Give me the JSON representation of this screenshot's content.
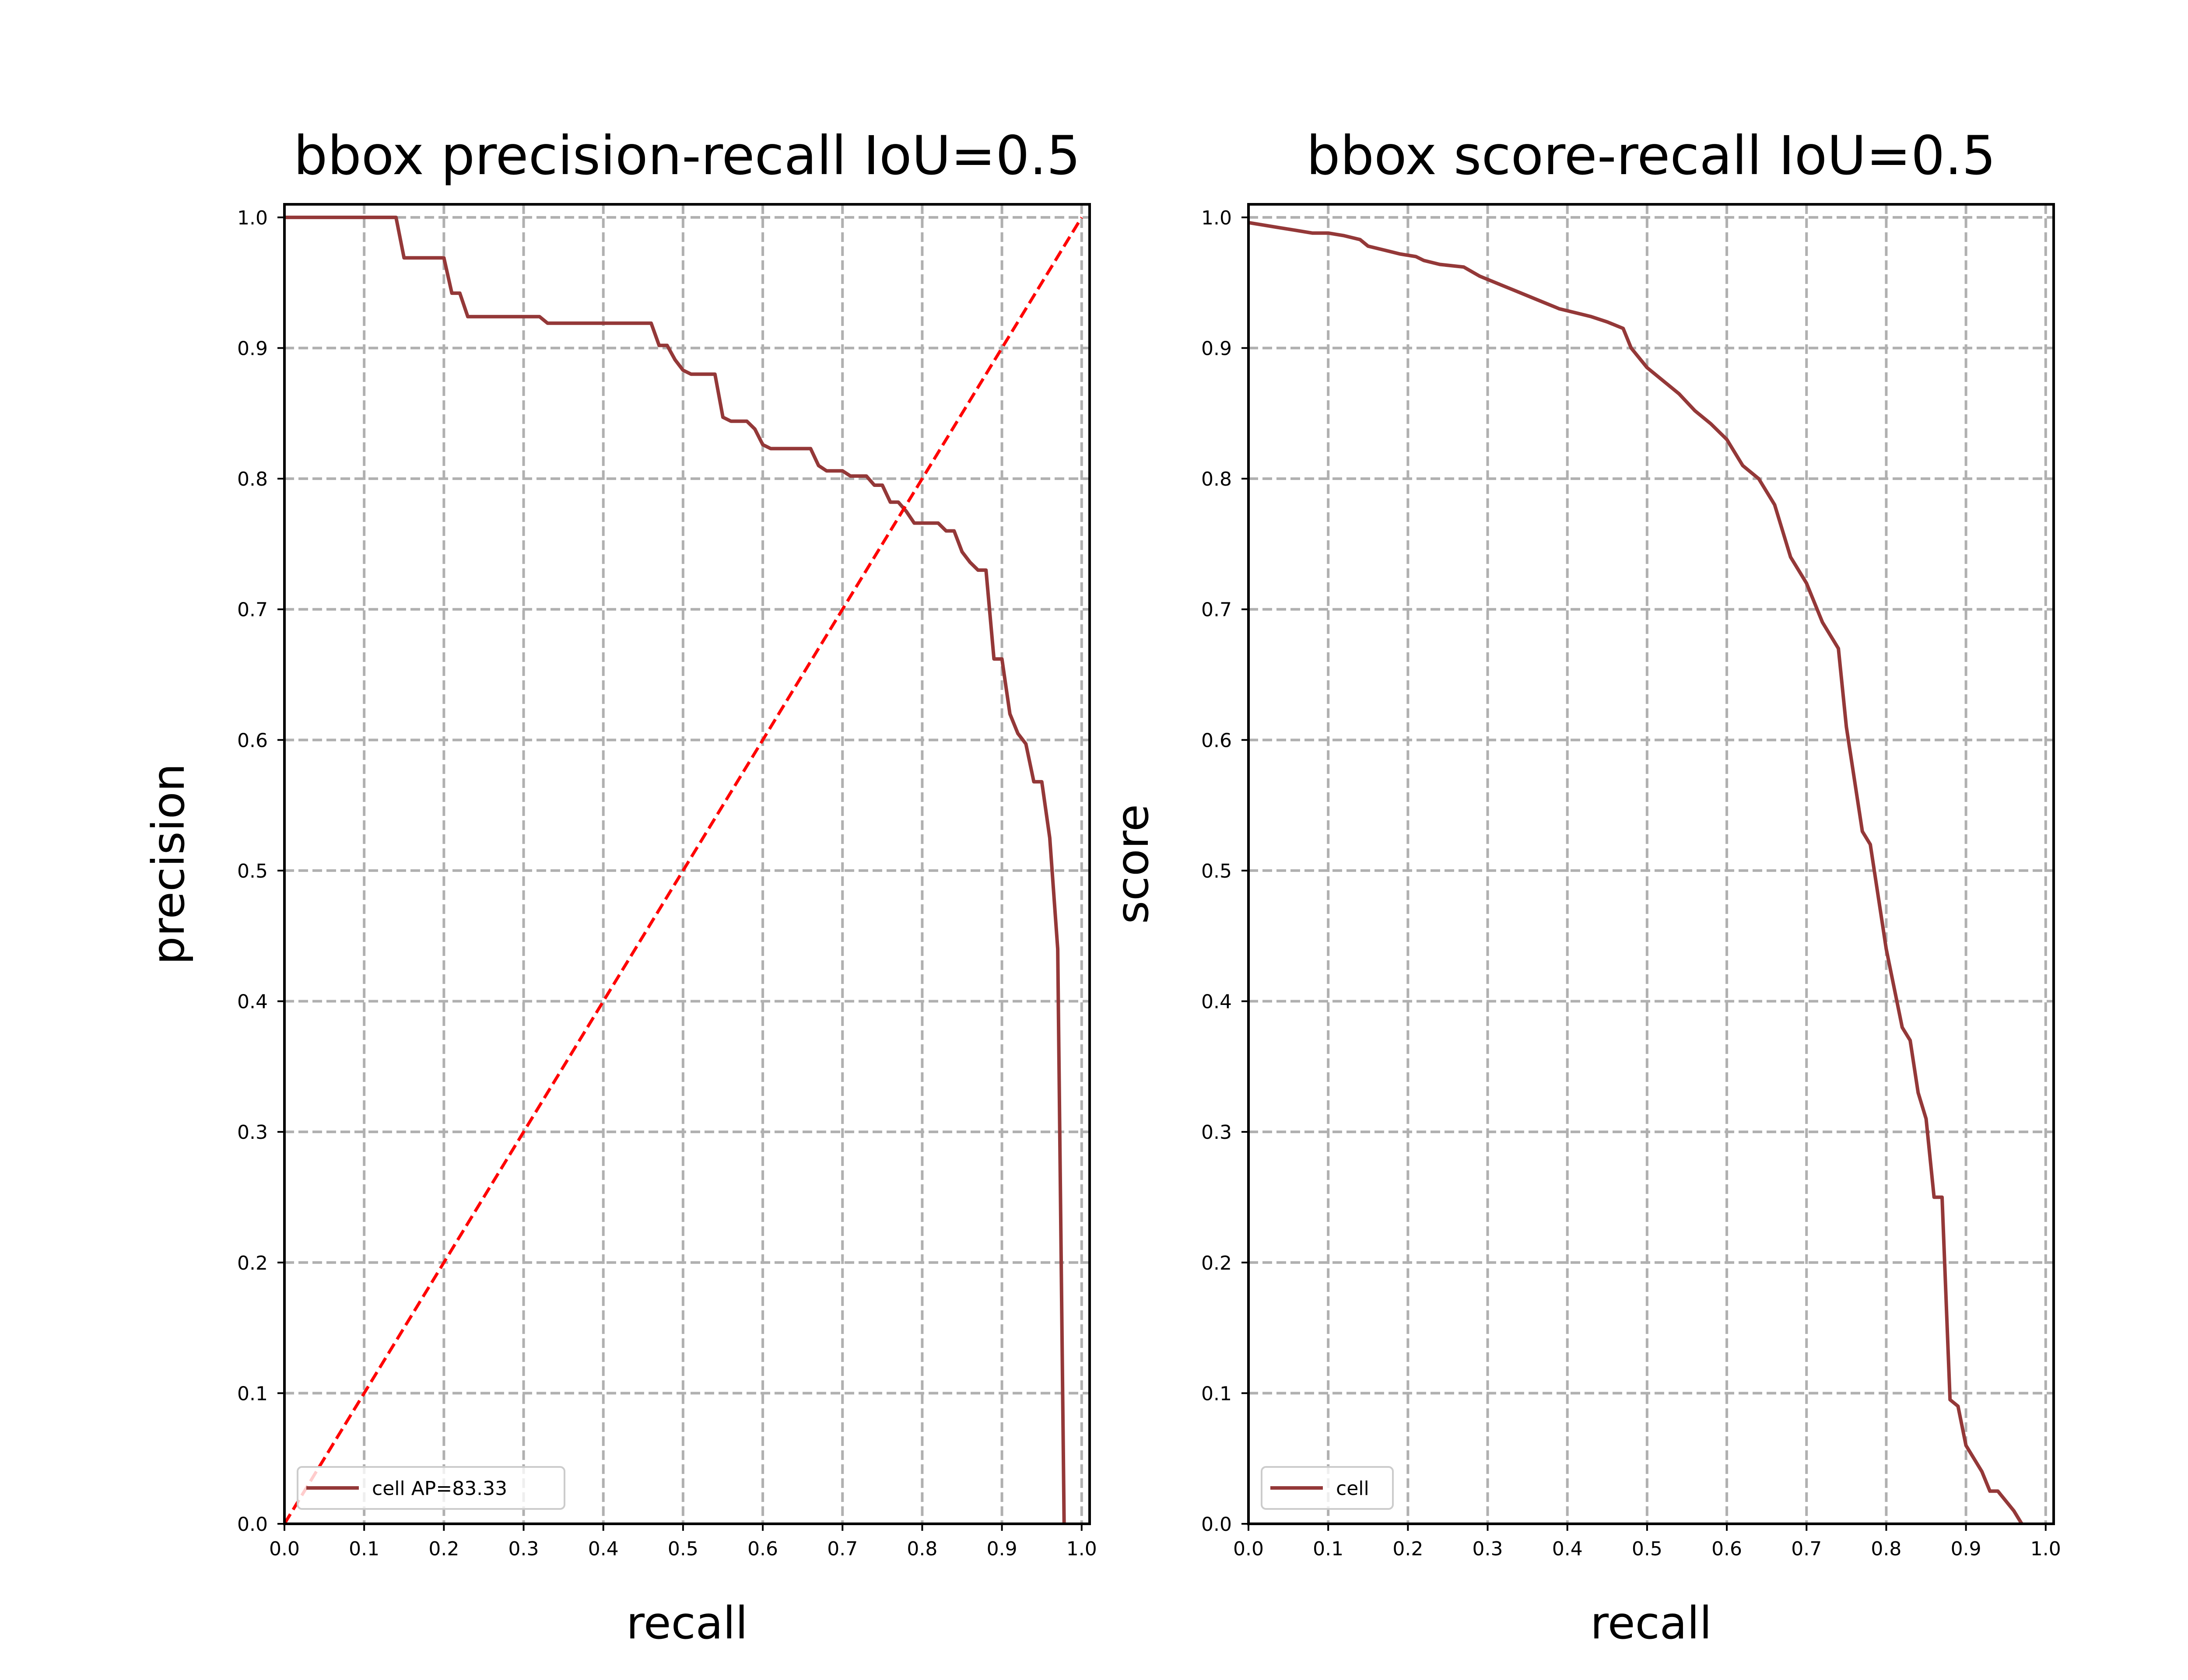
{
  "chart_data": [
    {
      "type": "line",
      "title": "bbox precision-recall IoU=0.5",
      "xlabel": "recall",
      "ylabel": "precision",
      "xlim": [
        0,
        1.0
      ],
      "ylim": [
        0,
        1.0
      ],
      "grid": true,
      "legend_position": "lower-left",
      "x_ticks": [
        "0.0",
        "0.1",
        "0.2",
        "0.3",
        "0.4",
        "0.5",
        "0.6",
        "0.7",
        "0.8",
        "0.9",
        "1.0"
      ],
      "y_ticks": [
        "0.0",
        "0.1",
        "0.2",
        "0.3",
        "0.4",
        "0.5",
        "0.6",
        "0.7",
        "0.8",
        "0.9",
        "1.0"
      ],
      "series": [
        {
          "name": "cell AP=83.33",
          "color": "#943838",
          "points": [
            [
              0,
              1.0
            ],
            [
              0.14,
              1.0
            ],
            [
              0.15,
              0.969
            ],
            [
              0.2,
              0.969
            ],
            [
              0.21,
              0.942
            ],
            [
              0.22,
              0.942
            ],
            [
              0.23,
              0.924
            ],
            [
              0.32,
              0.924
            ],
            [
              0.33,
              0.919
            ],
            [
              0.46,
              0.919
            ],
            [
              0.47,
              0.902
            ],
            [
              0.48,
              0.902
            ],
            [
              0.49,
              0.891
            ],
            [
              0.5,
              0.883
            ],
            [
              0.51,
              0.88
            ],
            [
              0.54,
              0.88
            ],
            [
              0.55,
              0.847
            ],
            [
              0.56,
              0.844
            ],
            [
              0.58,
              0.844
            ],
            [
              0.59,
              0.838
            ],
            [
              0.6,
              0.826
            ],
            [
              0.61,
              0.823
            ],
            [
              0.66,
              0.823
            ],
            [
              0.67,
              0.81
            ],
            [
              0.68,
              0.806
            ],
            [
              0.7,
              0.806
            ],
            [
              0.71,
              0.802
            ],
            [
              0.73,
              0.802
            ],
            [
              0.74,
              0.795
            ],
            [
              0.75,
              0.795
            ],
            [
              0.76,
              0.782
            ],
            [
              0.77,
              0.782
            ],
            [
              0.78,
              0.775
            ],
            [
              0.79,
              0.766
            ],
            [
              0.82,
              0.766
            ],
            [
              0.83,
              0.76
            ],
            [
              0.84,
              0.76
            ],
            [
              0.85,
              0.744
            ],
            [
              0.86,
              0.736
            ],
            [
              0.87,
              0.73
            ],
            [
              0.88,
              0.73
            ],
            [
              0.89,
              0.662
            ],
            [
              0.9,
              0.662
            ],
            [
              0.91,
              0.62
            ],
            [
              0.92,
              0.605
            ],
            [
              0.93,
              0.597
            ],
            [
              0.94,
              0.568
            ],
            [
              0.95,
              0.568
            ],
            [
              0.96,
              0.525
            ],
            [
              0.97,
              0.44
            ],
            [
              0.978,
              0.0
            ]
          ]
        },
        {
          "name": "",
          "color": "#ff0000",
          "style": "dashed",
          "points": [
            [
              0,
              0
            ],
            [
              1.0,
              1.0
            ]
          ]
        }
      ]
    },
    {
      "type": "line",
      "title": "bbox score-recall IoU=0.5",
      "xlabel": "recall",
      "ylabel": "score",
      "xlim": [
        0,
        1.0
      ],
      "ylim": [
        0,
        1.0
      ],
      "grid": true,
      "legend_position": "lower-left",
      "x_ticks": [
        "0.0",
        "0.1",
        "0.2",
        "0.3",
        "0.4",
        "0.5",
        "0.6",
        "0.7",
        "0.8",
        "0.9",
        "1.0"
      ],
      "y_ticks": [
        "0.0",
        "0.1",
        "0.2",
        "0.3",
        "0.4",
        "0.5",
        "0.6",
        "0.7",
        "0.8",
        "0.9",
        "1.0"
      ],
      "series": [
        {
          "name": "cell",
          "color": "#943838",
          "points": [
            [
              0,
              0.996
            ],
            [
              0.02,
              0.994
            ],
            [
              0.04,
              0.992
            ],
            [
              0.06,
              0.99
            ],
            [
              0.08,
              0.988
            ],
            [
              0.1,
              0.988
            ],
            [
              0.12,
              0.986
            ],
            [
              0.14,
              0.983
            ],
            [
              0.15,
              0.978
            ],
            [
              0.17,
              0.975
            ],
            [
              0.19,
              0.972
            ],
            [
              0.21,
              0.97
            ],
            [
              0.22,
              0.967
            ],
            [
              0.24,
              0.964
            ],
            [
              0.27,
              0.962
            ],
            [
              0.29,
              0.955
            ],
            [
              0.31,
              0.95
            ],
            [
              0.33,
              0.945
            ],
            [
              0.35,
              0.94
            ],
            [
              0.37,
              0.935
            ],
            [
              0.39,
              0.93
            ],
            [
              0.41,
              0.927
            ],
            [
              0.43,
              0.924
            ],
            [
              0.45,
              0.92
            ],
            [
              0.47,
              0.915
            ],
            [
              0.48,
              0.9
            ],
            [
              0.5,
              0.885
            ],
            [
              0.52,
              0.875
            ],
            [
              0.54,
              0.865
            ],
            [
              0.56,
              0.852
            ],
            [
              0.58,
              0.842
            ],
            [
              0.6,
              0.83
            ],
            [
              0.62,
              0.81
            ],
            [
              0.64,
              0.8
            ],
            [
              0.66,
              0.78
            ],
            [
              0.67,
              0.76
            ],
            [
              0.68,
              0.74
            ],
            [
              0.7,
              0.72
            ],
            [
              0.72,
              0.69
            ],
            [
              0.74,
              0.67
            ],
            [
              0.75,
              0.61
            ],
            [
              0.77,
              0.53
            ],
            [
              0.78,
              0.52
            ],
            [
              0.79,
              0.48
            ],
            [
              0.8,
              0.44
            ],
            [
              0.82,
              0.38
            ],
            [
              0.83,
              0.37
            ],
            [
              0.84,
              0.33
            ],
            [
              0.85,
              0.31
            ],
            [
              0.86,
              0.25
            ],
            [
              0.87,
              0.25
            ],
            [
              0.88,
              0.095
            ],
            [
              0.89,
              0.09
            ],
            [
              0.9,
              0.06
            ],
            [
              0.91,
              0.05
            ],
            [
              0.92,
              0.04
            ],
            [
              0.93,
              0.025
            ],
            [
              0.94,
              0.025
            ],
            [
              0.96,
              0.01
            ],
            [
              0.97,
              0.0
            ]
          ]
        }
      ]
    }
  ]
}
